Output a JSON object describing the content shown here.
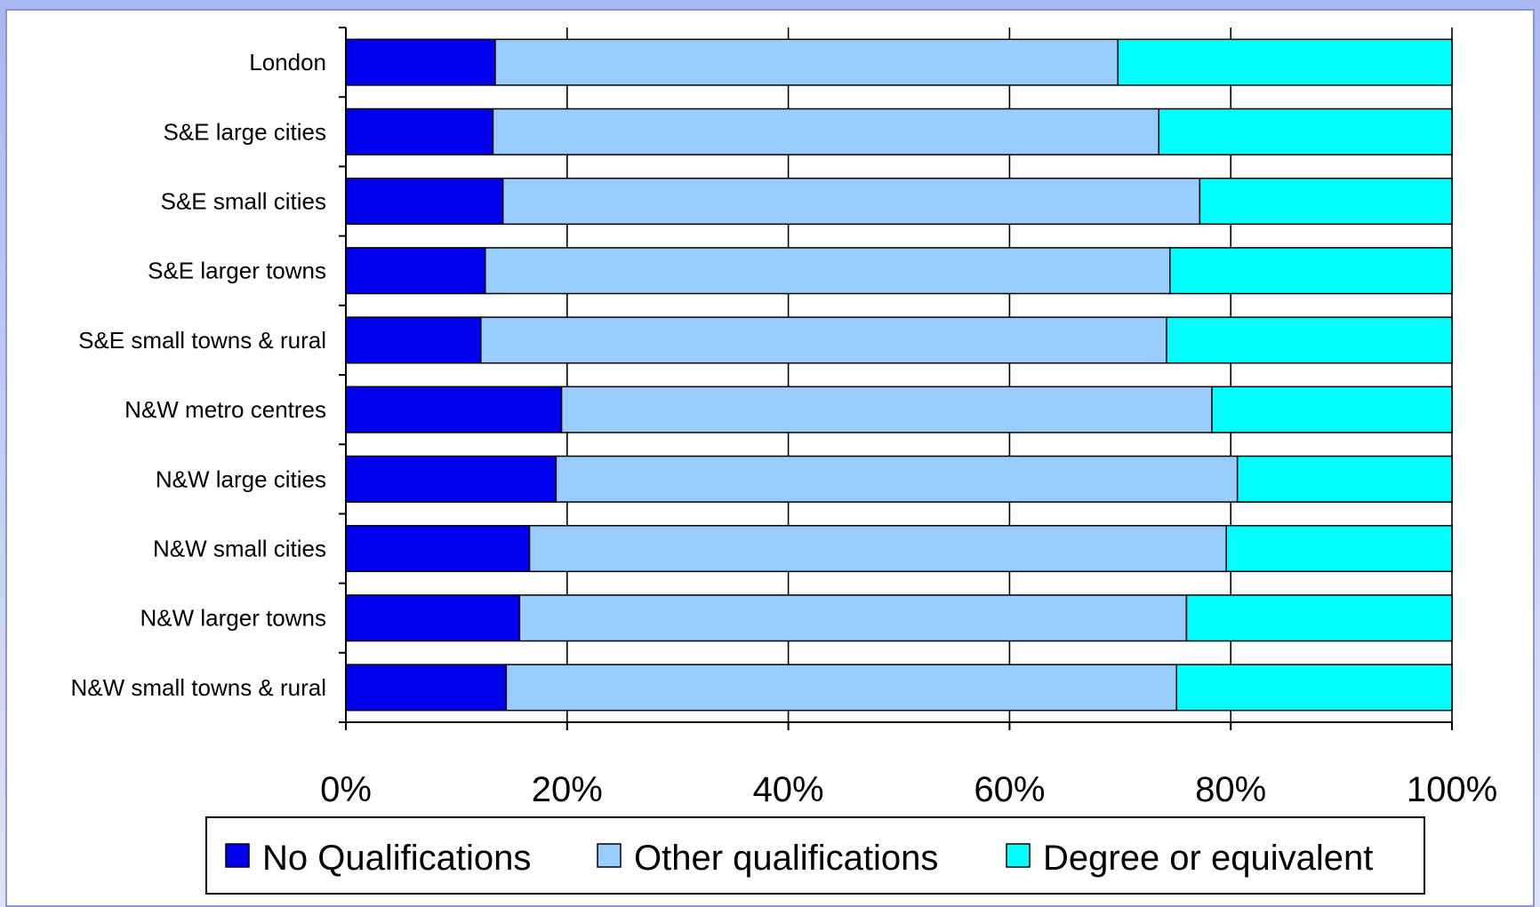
{
  "chart_data": {
    "type": "bar",
    "orientation": "horizontal",
    "stacked": "percent",
    "title": "",
    "xlabel": "",
    "ylabel": "",
    "xlim": [
      0,
      100
    ],
    "x_ticks": [
      "0%",
      "20%",
      "40%",
      "60%",
      "80%",
      "100%"
    ],
    "grid": true,
    "legend_position": "bottom",
    "categories": [
      "London",
      "S&E large cities",
      "S&E small cities",
      "S&E larger towns",
      "S&E small towns & rural",
      "N&W metro centres",
      "N&W large cities",
      "N&W small cities",
      "N&W larger towns",
      "N&W small towns & rural"
    ],
    "series": [
      {
        "name": "No Qualifications",
        "color": "#0000ee",
        "values": [
          13.5,
          13.3,
          14.2,
          12.6,
          12.2,
          19.5,
          19.0,
          16.6,
          15.7,
          14.5
        ]
      },
      {
        "name": "Other qualifications",
        "color": "#99ccff",
        "values": [
          56.3,
          60.2,
          63.0,
          61.9,
          62.0,
          58.8,
          61.6,
          63.0,
          60.3,
          60.6
        ]
      },
      {
        "name": "Degree or equivalent",
        "color": "#00ffff",
        "values": [
          30.2,
          26.5,
          22.8,
          25.5,
          25.8,
          21.7,
          19.4,
          20.4,
          24.0,
          24.9
        ]
      }
    ]
  }
}
